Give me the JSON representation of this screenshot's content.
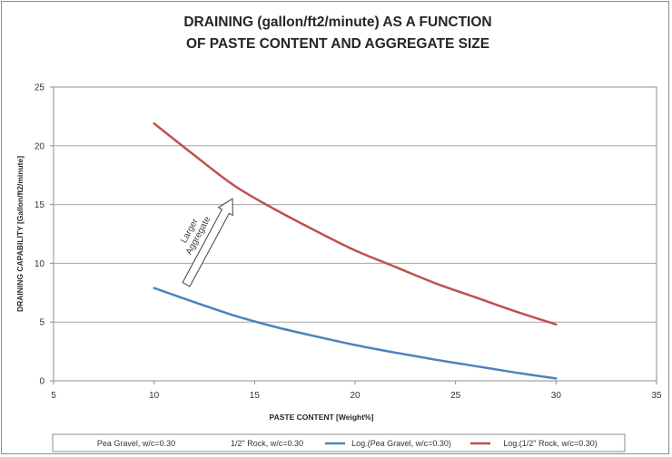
{
  "chart_data": {
    "type": "line",
    "title_lines": [
      "DRAINING (gallon/ft2/minute) AS A FUNCTION",
      "OF PASTE CONTENT AND AGGREGATE SIZE"
    ],
    "xlabel": "PASTE CONTENT  [Weight%]",
    "ylabel": "DRAINING CAPABILITY  [Gallon/ft2/minute]",
    "xlim": [
      5,
      35
    ],
    "ylim": [
      0,
      25
    ],
    "x_ticks": [
      5,
      10,
      15,
      20,
      25,
      30,
      35
    ],
    "y_ticks": [
      0,
      5,
      10,
      15,
      20,
      25
    ],
    "grid": {
      "horizontal": true,
      "vertical": false
    },
    "legend_position": "bottom",
    "series": [
      {
        "name": "Pea Gravel, w/c=0.30",
        "kind": "marker-none",
        "color": "#4f81bd",
        "x": [],
        "y": []
      },
      {
        "name": "1/2\" Rock, w/c=0.30",
        "kind": "marker-none",
        "color": "#c0504d",
        "x": [],
        "y": []
      },
      {
        "name": "Log.(Pea Gravel, w/c=0.30)",
        "kind": "trendline",
        "color": "#4f81bd",
        "x": [
          10,
          12,
          14,
          16,
          18,
          20,
          22,
          24,
          26,
          28,
          30
        ],
        "y": [
          7.9,
          6.7,
          5.55,
          4.6,
          3.8,
          3.05,
          2.4,
          1.8,
          1.25,
          0.7,
          0.2
        ]
      },
      {
        "name": "Log.(1/2\" Rock, w/c=0.30)",
        "kind": "trendline",
        "color": "#c0504d",
        "x": [
          10,
          12,
          14,
          16,
          18,
          20,
          22,
          24,
          26,
          28,
          30
        ],
        "y": [
          21.9,
          19.2,
          16.6,
          14.6,
          12.8,
          11.1,
          9.7,
          8.3,
          7.1,
          5.9,
          4.8
        ]
      }
    ],
    "annotation": {
      "lines": [
        "Larger",
        "Aggregate"
      ],
      "arrow_from": [
        11.6,
        8.2
      ],
      "arrow_to": [
        13.9,
        15.5
      ]
    }
  }
}
